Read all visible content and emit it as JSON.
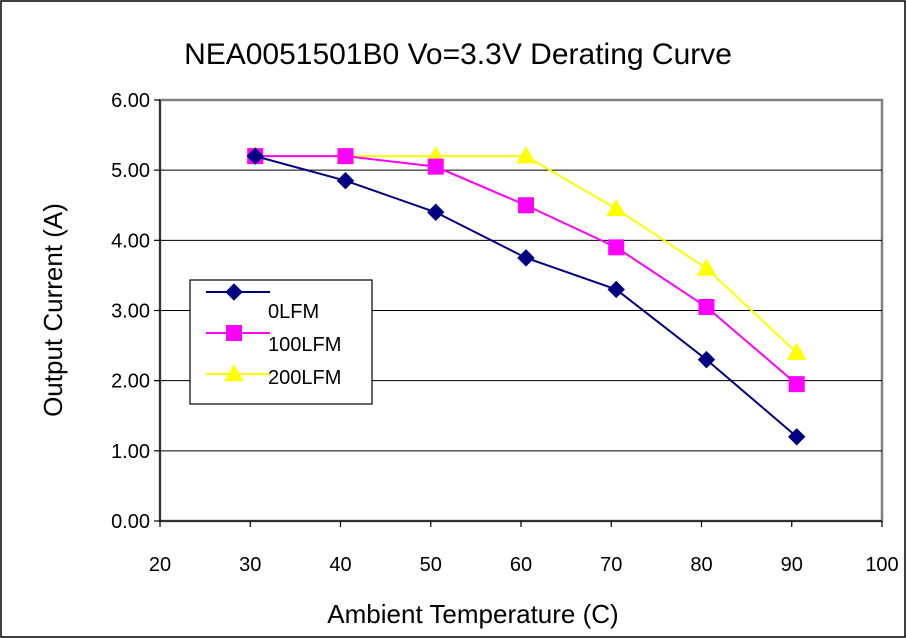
{
  "chart_data": {
    "type": "line",
    "title": "NEA0051501B0 Vo=3.3V Derating Curve",
    "xlabel": "Ambient Temperature (C)",
    "ylabel": "Output Current (A)",
    "xlim": [
      20,
      100
    ],
    "ylim": [
      0,
      6
    ],
    "x_ticks": [
      20,
      30,
      40,
      50,
      60,
      70,
      80,
      90,
      100
    ],
    "y_ticks": [
      0,
      1,
      2,
      3,
      4,
      5,
      6
    ],
    "x_tick_labels": [
      "20",
      "30",
      "40",
      "50",
      "60",
      "70",
      "80",
      "90",
      "100"
    ],
    "y_tick_labels": [
      "0.00",
      "1.00",
      "2.00",
      "3.00",
      "4.00",
      "5.00",
      "6.00"
    ],
    "grid": true,
    "legend_position": "center-left",
    "x": [
      30,
      40,
      50,
      60,
      70,
      80,
      90
    ],
    "series": [
      {
        "name": "0LFM",
        "marker": "diamond",
        "color": "#000080",
        "values": [
          5.2,
          4.85,
          4.4,
          3.75,
          3.3,
          2.3,
          1.2
        ]
      },
      {
        "name": "100LFM",
        "marker": "square",
        "color": "#ff00ff",
        "values": [
          5.2,
          5.2,
          5.05,
          4.5,
          3.9,
          3.05,
          1.95
        ]
      },
      {
        "name": "200LFM",
        "marker": "triangle",
        "color": "#ffff00",
        "values": [
          5.2,
          5.2,
          5.2,
          5.2,
          4.45,
          3.6,
          2.4
        ]
      }
    ]
  }
}
